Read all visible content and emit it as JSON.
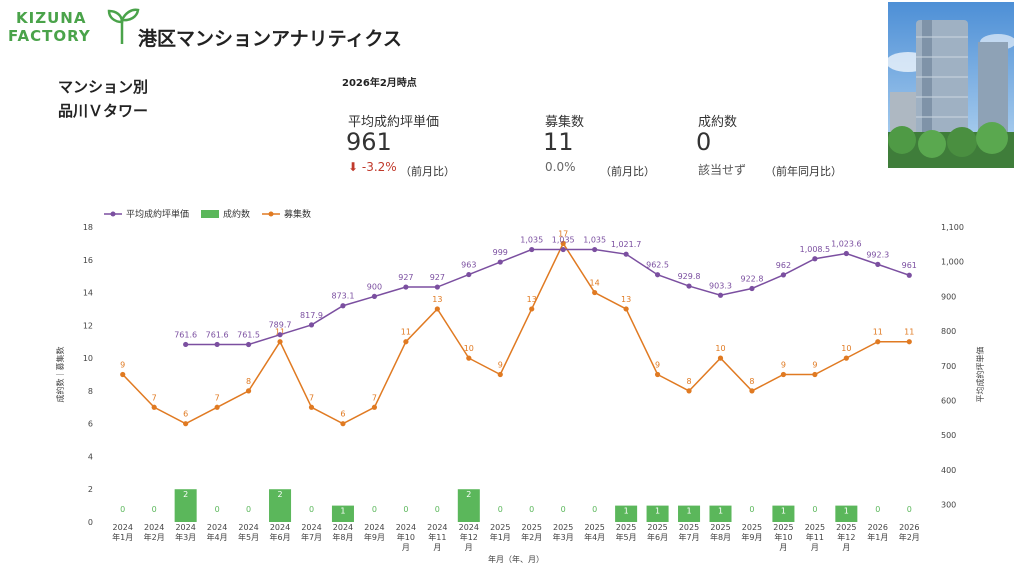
{
  "logo": {
    "line1": "KIZUNA",
    "line2": "FACTORY"
  },
  "page_title": "港区マンションアナリティクス",
  "subtitle_line1": "マンション別",
  "subtitle_line2": "品川Ｖタワー",
  "as_of": "2026年2月時点",
  "kpis": {
    "avg_price": {
      "label": "平均成約坪単価",
      "value": "961",
      "change": "-3.2%",
      "note": "（前月比）"
    },
    "listings": {
      "label": "募集数",
      "value": "11",
      "change": "0.0%",
      "note": "（前月比）"
    },
    "contracts": {
      "label": "成約数",
      "value": "0",
      "change": "該当せず",
      "note": "（前年同月比）"
    }
  },
  "colors": {
    "price": "#7b4fa0",
    "contracts": "#5bb75b",
    "listings": "#e07a22",
    "negative": "#c0392b",
    "brand": "#4aa34a"
  },
  "icons": {
    "down": "arrow-down-icon"
  },
  "chart_data": {
    "type": "combo",
    "legend": [
      "平均成約坪単価",
      "成約数",
      "募集数"
    ],
    "legend_position": "top-left",
    "xlabel": "年月（年、月）",
    "ylabel_left": "成約数｜募集数",
    "ylabel_right": "平均成約坪単価",
    "ylim_left": [
      0,
      18
    ],
    "yticks_left": [
      "0",
      "2",
      "4",
      "6",
      "8",
      "10",
      "12",
      "14",
      "16",
      "18"
    ],
    "ylim_right": [
      250,
      1100
    ],
    "yticks_right": [
      "300",
      "400",
      "500",
      "600",
      "700",
      "800",
      "900",
      "1,000",
      "1,100"
    ],
    "categories": [
      [
        "2024",
        "年1月"
      ],
      [
        "2024",
        "年2月"
      ],
      [
        "2024",
        "年3月"
      ],
      [
        "2024",
        "年4月"
      ],
      [
        "2024",
        "年5月"
      ],
      [
        "2024",
        "年6月"
      ],
      [
        "2024",
        "年7月"
      ],
      [
        "2024",
        "年8月"
      ],
      [
        "2024",
        "年9月"
      ],
      [
        "2024",
        "年10",
        "月"
      ],
      [
        "2024",
        "年11",
        "月"
      ],
      [
        "2024",
        "年12",
        "月"
      ],
      [
        "2025",
        "年1月"
      ],
      [
        "2025",
        "年2月"
      ],
      [
        "2025",
        "年3月"
      ],
      [
        "2025",
        "年4月"
      ],
      [
        "2025",
        "年5月"
      ],
      [
        "2025",
        "年6月"
      ],
      [
        "2025",
        "年7月"
      ],
      [
        "2025",
        "年8月"
      ],
      [
        "2025",
        "年9月"
      ],
      [
        "2025",
        "年10",
        "月"
      ],
      [
        "2025",
        "年11",
        "月"
      ],
      [
        "2025",
        "年12",
        "月"
      ],
      [
        "2026",
        "年1月"
      ],
      [
        "2026",
        "年2月"
      ]
    ],
    "series": [
      {
        "name": "平均成約坪単価",
        "values": [
          null,
          null,
          761.6,
          761.6,
          761.5,
          789.7,
          817.9,
          873.1,
          900,
          927,
          927,
          963,
          999,
          1035,
          1035,
          1035,
          1021.7,
          962.5,
          929.8,
          903.3,
          922.8,
          962,
          1008.5,
          1023.6,
          992.3,
          961
        ],
        "labels": [
          "",
          "",
          "761.6",
          "761.6",
          "761.5",
          "789.7",
          "817.9",
          "873.1",
          "900",
          "927",
          "927",
          "963",
          "999",
          "1,035",
          "1,035",
          "1,035",
          "1,021.7",
          "962.5",
          "929.8",
          "903.3",
          "922.8",
          "962",
          "1,008.5",
          "1,023.6",
          "992.3",
          "961"
        ]
      },
      {
        "name": "成約数",
        "values": [
          0,
          0,
          2,
          0,
          0,
          2,
          0,
          1,
          0,
          0,
          0,
          2,
          0,
          0,
          0,
          0,
          1,
          1,
          1,
          1,
          0,
          1,
          0,
          1,
          0,
          0
        ]
      },
      {
        "name": "募集数",
        "values": [
          9,
          7,
          6,
          7,
          8,
          11,
          7,
          6,
          7,
          11,
          13,
          10,
          9,
          13,
          17,
          14,
          13,
          9,
          8,
          10,
          8,
          9,
          9,
          10,
          11,
          11
        ]
      }
    ]
  }
}
